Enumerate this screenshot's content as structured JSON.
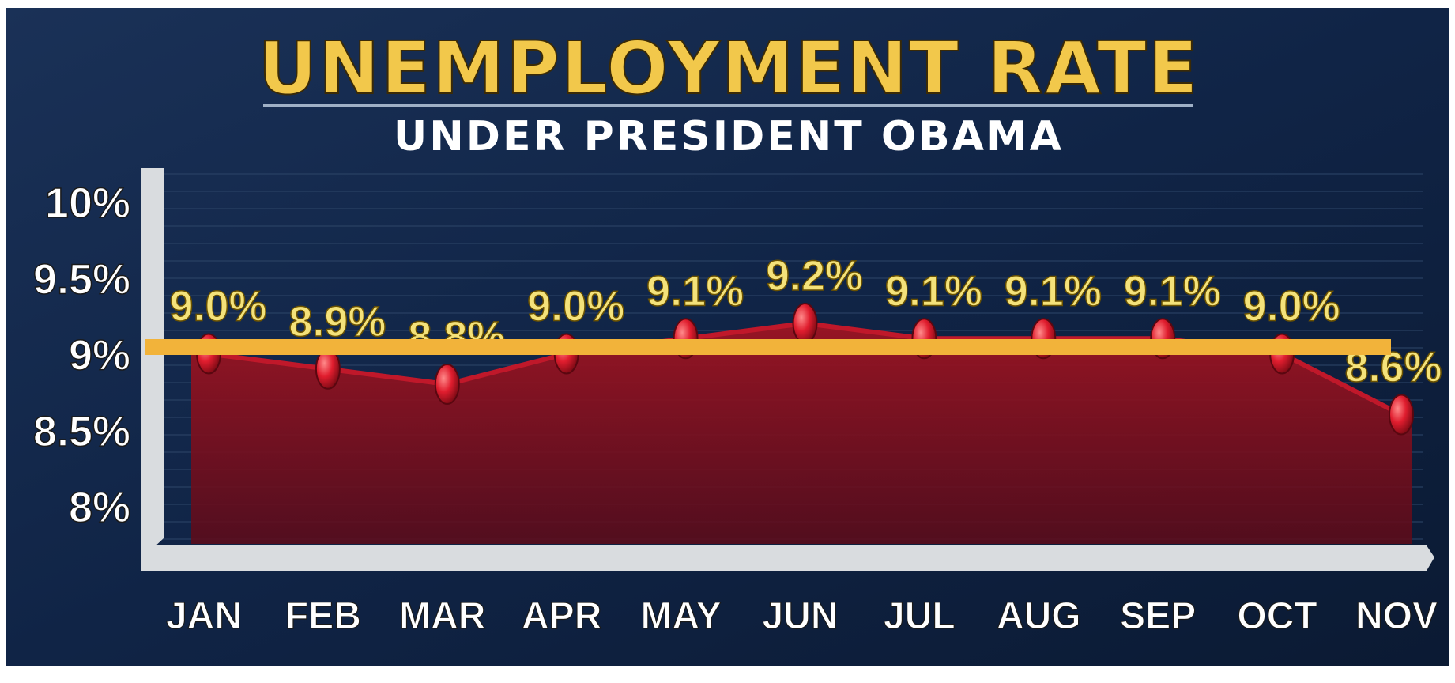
{
  "chart_data": {
    "type": "area",
    "title": "UNEMPLOYMENT RATE",
    "subtitle": "UNDER PRESIDENT OBAMA",
    "xlabel": "",
    "ylabel": "",
    "categories": [
      "JAN",
      "FEB",
      "MAR",
      "APR",
      "MAY",
      "JUN",
      "JUL",
      "AUG",
      "SEP",
      "OCT",
      "NOV"
    ],
    "series": [
      {
        "values": [
          9.0,
          8.9,
          8.8,
          9.0,
          9.1,
          9.2,
          9.1,
          9.1,
          9.1,
          9.0,
          8.6
        ],
        "labels": [
          "9.0%",
          "8.9%",
          "8.8%",
          "9.0%",
          "9.1%",
          "9.2%",
          "9.1%",
          "9.1%",
          "9.1%",
          "9.0%",
          "8.6%"
        ]
      }
    ],
    "y_ticks": [
      10,
      9.5,
      9,
      8.5,
      8
    ],
    "y_tick_labels": [
      "10%",
      "9.5%",
      "9%",
      "8.5%",
      "8%"
    ],
    "reference_line": {
      "color": "#f2b33a",
      "value_hint": "horizontal overlay line spanning the plot"
    },
    "grid": true,
    "legend": "none",
    "colors": {
      "background": "#0f2240",
      "title": "#f2c84b",
      "subtitle": "#ffffff",
      "area_fill": "#8a0f1c",
      "line": "#c0182a",
      "marker": "#e01d2e",
      "data_label": "#f4e27a",
      "axis_frame": "#d9dcdf",
      "tick_label": "#ffffff"
    }
  }
}
